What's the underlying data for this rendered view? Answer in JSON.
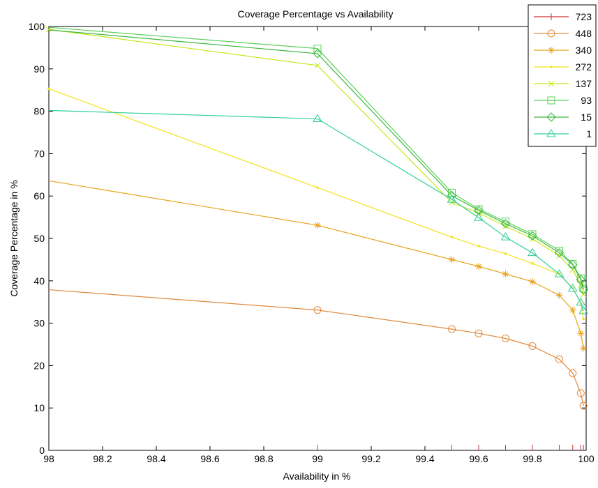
{
  "chart_data": {
    "type": "line",
    "title": "Coverage Percentage vs Availability",
    "xlabel": "Availability in %",
    "ylabel": "Coverage Percentage in %",
    "xlim": [
      98,
      100
    ],
    "ylim": [
      0,
      100
    ],
    "xticks": [
      "98",
      "98.2",
      "98.4",
      "98.6",
      "98.8",
      "99",
      "99.2",
      "99.4",
      "99.6",
      "99.8",
      "100"
    ],
    "yticks": [
      "0",
      "10",
      "20",
      "30",
      "40",
      "50",
      "60",
      "70",
      "80",
      "90",
      "100"
    ],
    "grid": false,
    "legend_position": "top-right",
    "series": [
      {
        "name": "723",
        "color": "#cc3333",
        "marker": "plus",
        "x": [
          99,
          99.5,
          99.6,
          99.7,
          99.8,
          99.9,
          99.95,
          99.98,
          99.99
        ],
        "y": [
          0,
          0,
          0,
          0,
          0,
          0,
          0,
          0,
          0
        ]
      },
      {
        "name": "448",
        "color": "#e08a3c",
        "marker": "circle",
        "x": [
          98,
          99,
          99.5,
          99.6,
          99.7,
          99.8,
          99.9,
          99.95,
          99.98,
          99.99
        ],
        "y": [
          37.9,
          33.1,
          28.6,
          27.6,
          26.4,
          24.6,
          21.5,
          18.2,
          13.5,
          10.5
        ]
      },
      {
        "name": "340",
        "color": "#e8a317",
        "marker": "star",
        "x": [
          98,
          99,
          99.5,
          99.6,
          99.7,
          99.8,
          99.9,
          99.95,
          99.98,
          99.99
        ],
        "y": [
          63.6,
          53.1,
          45.0,
          43.4,
          41.6,
          39.8,
          36.6,
          33.1,
          27.6,
          24.1
        ]
      },
      {
        "name": "272",
        "color": "#f2e31a",
        "marker": "point",
        "x": [
          98,
          99,
          99.5,
          99.6,
          99.7,
          99.8,
          99.9,
          99.95,
          99.98,
          99.99
        ],
        "y": [
          85.3,
          62.0,
          50.3,
          48.2,
          46.4,
          44.1,
          41.6,
          38.3,
          34.8,
          31.0
        ]
      },
      {
        "name": "137",
        "color": "#c8e61c",
        "marker": "x",
        "x": [
          98,
          99,
          99.5,
          99.6,
          99.7,
          99.8,
          99.9,
          99.95,
          99.98,
          99.99
        ],
        "y": [
          99.3,
          90.8,
          58.5,
          56.0,
          52.9,
          49.9,
          45.9,
          42.6,
          39.0,
          36.8
        ]
      },
      {
        "name": "93",
        "color": "#5ad05a",
        "marker": "square",
        "x": [
          98,
          99,
          99.5,
          99.6,
          99.7,
          99.8,
          99.9,
          99.95,
          99.98,
          99.99
        ],
        "y": [
          99.8,
          94.8,
          60.8,
          56.9,
          54.0,
          51.0,
          47.1,
          44.0,
          40.6,
          38.2
        ]
      },
      {
        "name": "15",
        "color": "#3cb83c",
        "marker": "diamond",
        "x": [
          98,
          99,
          99.5,
          99.6,
          99.7,
          99.8,
          99.9,
          99.95,
          99.98,
          99.99
        ],
        "y": [
          99.2,
          93.6,
          60.1,
          56.6,
          53.5,
          50.6,
          46.6,
          43.8,
          40.3,
          37.9
        ]
      },
      {
        "name": "1",
        "color": "#2ecf9a",
        "marker": "triangle",
        "x": [
          98,
          99,
          99.5,
          99.6,
          99.7,
          99.8,
          99.9,
          99.95,
          99.98,
          99.99
        ],
        "y": [
          80.2,
          78.2,
          59.2,
          54.9,
          50.3,
          46.6,
          41.6,
          38.2,
          34.9,
          32.9
        ]
      }
    ]
  }
}
